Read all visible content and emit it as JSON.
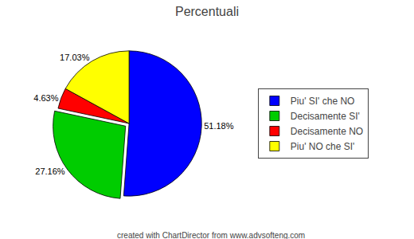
{
  "chart_data": {
    "type": "pie",
    "title": "Percentuali",
    "categories": [
      "Piu' SI' che NO",
      "Decisamente SI'",
      "Decisamente NO",
      "Piu' NO che SI'"
    ],
    "values": [
      51.18,
      27.16,
      4.63,
      17.03
    ],
    "value_labels": [
      "51.18%",
      "27.16%",
      "4.63%",
      "17.03%"
    ],
    "colors": [
      "#0000FF",
      "#00CC00",
      "#FF0000",
      "#FFFF00"
    ],
    "data_labels": true,
    "legend": "right",
    "annotations": [
      "created with ChartDirector from www.advsofteng.com"
    ]
  }
}
